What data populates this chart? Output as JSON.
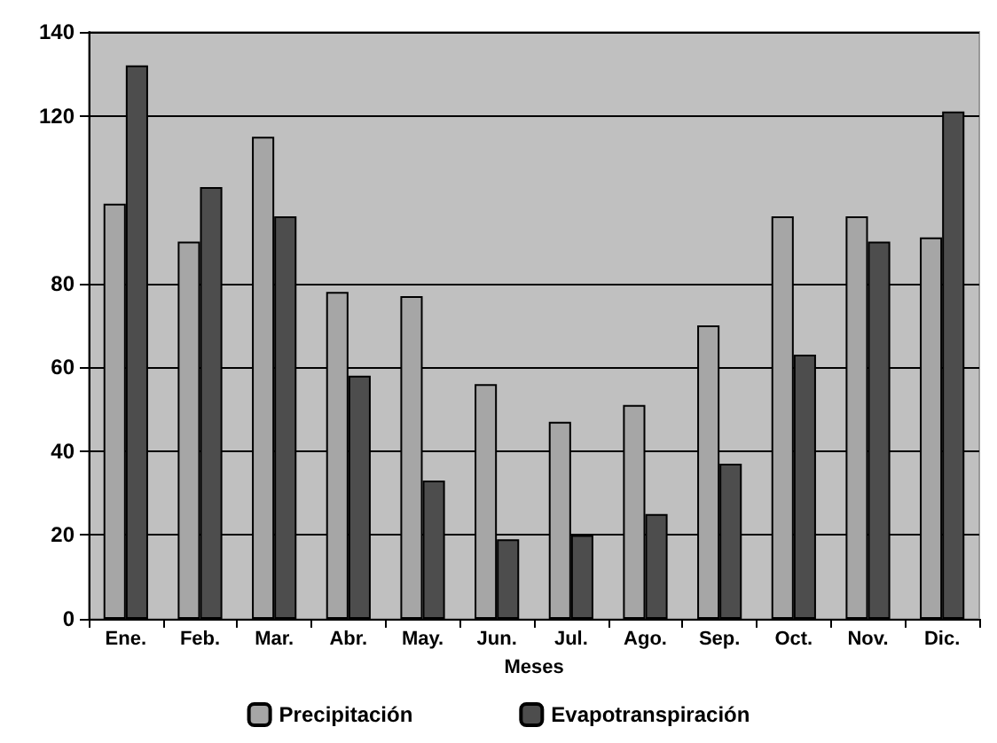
{
  "chart_data": {
    "type": "bar",
    "xlabel": "Meses",
    "categories": [
      "Ene.",
      "Feb.",
      "Mar.",
      "Abr.",
      "May.",
      "Jun.",
      "Jul.",
      "Ago.",
      "Sep.",
      "Oct.",
      "Nov.",
      "Dic."
    ],
    "series": [
      {
        "name": "Precipitación",
        "color": "#a6a6a6",
        "values": [
          99,
          90,
          115,
          78,
          77,
          56,
          47,
          51,
          70,
          96,
          96,
          91
        ]
      },
      {
        "name": "Evapotranspiración",
        "color": "#4d4d4d",
        "values": [
          132,
          103,
          96,
          58,
          33,
          19,
          20,
          25,
          37,
          63,
          90,
          121
        ]
      }
    ],
    "ylim": [
      0,
      140
    ],
    "yticks": [
      0,
      20,
      40,
      60,
      80,
      120,
      140
    ],
    "grid": "y",
    "legend": "bottom"
  }
}
